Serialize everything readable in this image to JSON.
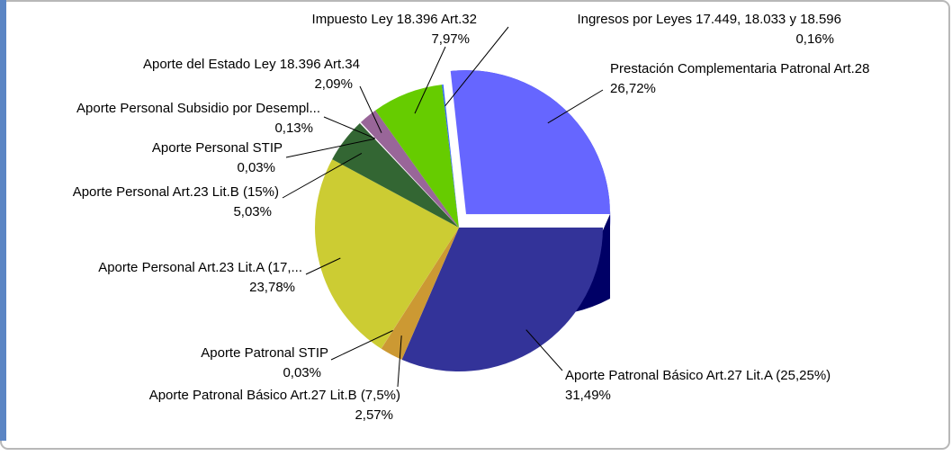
{
  "chart_data": {
    "type": "pie",
    "categories": [
      "Prestación Complementaria Patronal Art.28",
      "Aporte Patronal Básico Art.27 Lit.A (25,25%)",
      "Aporte Patronal Básico Art.27 Lit.B (7,5%)",
      "Aporte Patronal STIP",
      "Aporte Personal Art.23 Lit.A (17,...",
      "Aporte Personal Art.23 Lit.B (15%)",
      "Aporte Personal STIP",
      "Aporte Personal Subsidio por Desempl...",
      "Aporte del Estado Ley 18.396 Art.34",
      "Impuesto Ley 18.396 Art.32",
      "Ingresos por Leyes 17.449, 18.033 y 18.596"
    ],
    "values": [
      26.72,
      31.49,
      2.57,
      0.03,
      23.78,
      5.03,
      0.03,
      0.13,
      2.09,
      7.97,
      0.16
    ],
    "value_labels": [
      "26,72%",
      "31,49%",
      "2,57%",
      "0,03%",
      "23,78%",
      "5,03%",
      "0,03%",
      "0,13%",
      "2,09%",
      "7,97%",
      "0,16%"
    ],
    "colors": [
      "#6666ff",
      "#333399",
      "#cc9933",
      "#cc9933",
      "#cccc33",
      "#336633",
      "#333333",
      "#ffffff",
      "#996699",
      "#66cc00",
      "#3366ff"
    ]
  }
}
